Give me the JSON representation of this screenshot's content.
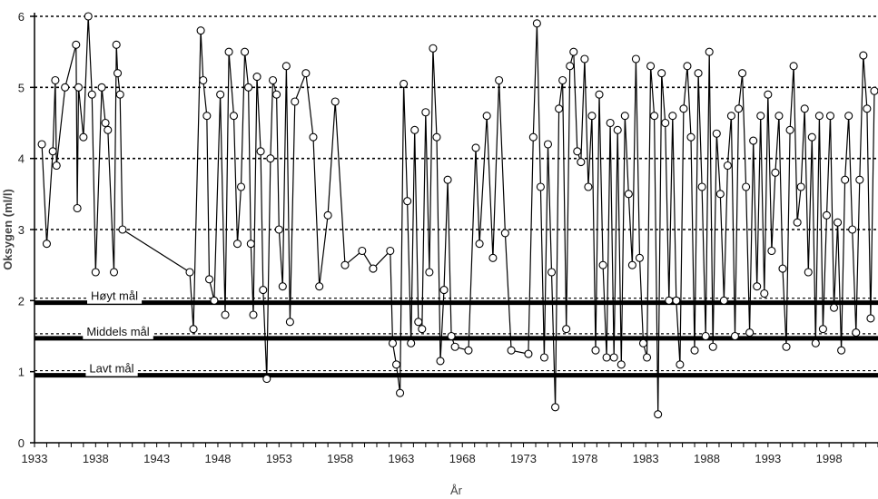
{
  "chart_data": {
    "type": "line",
    "title": "",
    "xlabel": "År",
    "ylabel": "Oksygen (ml/l)",
    "xlim": [
      1933,
      2002
    ],
    "ylim": [
      0,
      6
    ],
    "x_ticks": [
      1933,
      1938,
      1943,
      1948,
      1953,
      1958,
      1963,
      1968,
      1973,
      1978,
      1983,
      1988,
      1993,
      1998
    ],
    "y_ticks": [
      0,
      1,
      2,
      3,
      4,
      5,
      6
    ],
    "y_gridlines_dotted": [
      3,
      4,
      5,
      6
    ],
    "grid": true,
    "legend": "none",
    "marker": "open-circle",
    "line_color": "#000000",
    "reference_lines": [
      {
        "label": "Høyt mål",
        "value": 1.97
      },
      {
        "label": "Middels mål",
        "value": 1.47
      },
      {
        "label": "Lavt mål",
        "value": 0.95
      }
    ],
    "series": [
      {
        "x": [
          1933.6,
          1934.0,
          1934.5,
          1934.7,
          1934.8,
          1935.5,
          1936.4,
          1936.5,
          1936.6,
          1937.0,
          1937.4,
          1937.7,
          1938.0,
          1938.5,
          1938.8,
          1939.0,
          1939.5,
          1939.7,
          1939.8,
          1940.0,
          1940.2,
          1945.7,
          1946.0,
          1946.6,
          1946.8,
          1947.1,
          1947.3,
          1947.7,
          1948.2,
          1948.6,
          1948.9,
          1949.3,
          1949.6,
          1949.9,
          1950.2,
          1950.5,
          1950.7,
          1950.9,
          1951.2,
          1951.5,
          1951.7,
          1952.0,
          1952.3,
          1952.5,
          1952.8,
          1953.0,
          1953.3,
          1953.6,
          1953.9,
          1954.3,
          1955.2,
          1955.8,
          1956.3,
          1957.0,
          1957.6,
          1958.4,
          1959.8,
          1960.7,
          1962.1,
          1962.3,
          1962.6,
          1962.9,
          1963.2,
          1963.5,
          1963.8,
          1964.1,
          1964.4,
          1964.7,
          1965.0,
          1965.3,
          1965.6,
          1965.9,
          1966.2,
          1966.5,
          1966.8,
          1967.1,
          1967.4,
          1968.5,
          1969.1,
          1969.4,
          1970.0,
          1970.5,
          1971.0,
          1971.5,
          1972.0,
          1973.4,
          1973.8,
          1974.1,
          1974.4,
          1974.7,
          1975.0,
          1975.3,
          1975.6,
          1975.9,
          1976.2,
          1976.5,
          1976.8,
          1977.1,
          1977.4,
          1977.7,
          1978.0,
          1978.3,
          1978.6,
          1978.9,
          1979.2,
          1979.5,
          1979.8,
          1980.1,
          1980.4,
          1980.7,
          1981.0,
          1981.3,
          1981.6,
          1981.9,
          1982.2,
          1982.5,
          1982.8,
          1983.1,
          1983.4,
          1983.7,
          1984.0,
          1984.3,
          1984.6,
          1984.9,
          1985.2,
          1985.5,
          1985.8,
          1986.1,
          1986.4,
          1986.7,
          1987.0,
          1987.3,
          1987.6,
          1987.9,
          1988.2,
          1988.5,
          1988.8,
          1989.1,
          1989.4,
          1989.7,
          1990.0,
          1990.3,
          1990.6,
          1990.9,
          1991.2,
          1991.5,
          1991.8,
          1992.1,
          1992.4,
          1992.7,
          1993.0,
          1993.3,
          1993.6,
          1993.9,
          1994.2,
          1994.5,
          1994.8,
          1995.1,
          1995.4,
          1995.7,
          1996.0,
          1996.3,
          1996.6,
          1996.9,
          1997.2,
          1997.5,
          1997.8,
          1998.1,
          1998.4,
          1998.7,
          1999.0,
          1999.3,
          1999.6,
          1999.9,
          2000.2,
          2000.5,
          2000.8,
          2001.1,
          2001.4,
          2001.7
        ],
        "y": [
          4.2,
          2.8,
          4.1,
          5.1,
          3.9,
          5.0,
          5.6,
          3.3,
          5.0,
          4.3,
          6.0,
          4.9,
          2.4,
          5.0,
          4.5,
          4.4,
          2.4,
          5.6,
          5.2,
          4.9,
          3.0,
          2.4,
          1.6,
          5.8,
          5.1,
          4.6,
          2.3,
          2.0,
          4.9,
          1.8,
          5.5,
          4.6,
          2.8,
          3.6,
          5.5,
          5.0,
          2.8,
          1.8,
          5.15,
          4.1,
          2.15,
          0.9,
          4.0,
          5.1,
          4.9,
          3.0,
          2.2,
          5.3,
          1.7,
          4.8,
          5.2,
          4.3,
          2.2,
          3.2,
          4.8,
          2.5,
          2.7,
          2.45,
          2.7,
          1.4,
          1.1,
          0.7,
          5.05,
          3.4,
          1.4,
          4.4,
          1.7,
          1.6,
          4.65,
          2.4,
          5.55,
          4.3,
          1.15,
          2.15,
          3.7,
          1.5,
          1.35,
          1.3,
          4.15,
          2.8,
          4.6,
          2.6,
          5.1,
          2.95,
          1.3,
          1.25,
          4.3,
          5.9,
          3.6,
          1.2,
          4.2,
          2.4,
          0.5,
          4.7,
          5.1,
          1.6,
          5.3,
          5.5,
          4.1,
          3.95,
          5.4,
          3.6,
          4.6,
          1.3,
          4.9,
          2.5,
          1.2,
          4.5,
          1.2,
          4.4,
          1.1,
          4.6,
          3.5,
          2.5,
          5.4,
          2.6,
          1.4,
          1.2,
          5.3,
          4.6,
          0.4,
          5.2,
          4.5,
          2.0,
          4.6,
          2.0,
          1.1,
          4.7,
          5.3,
          4.3,
          1.3,
          5.2,
          3.6,
          1.5,
          5.5,
          1.35,
          4.35,
          3.5,
          2.0,
          3.9,
          4.6,
          1.5,
          4.7,
          5.2,
          3.6,
          1.55,
          4.25,
          2.2,
          4.6,
          2.1,
          4.9,
          2.7,
          3.8,
          4.6,
          2.45,
          1.35,
          4.4,
          5.3,
          3.1,
          3.6,
          4.7,
          2.4,
          4.3,
          1.4,
          4.6,
          1.6,
          3.2,
          4.6,
          1.9,
          3.1,
          1.3,
          3.7,
          4.6,
          3.0,
          1.55,
          3.7,
          5.45,
          4.7,
          1.75,
          4.95
        ]
      }
    ]
  }
}
